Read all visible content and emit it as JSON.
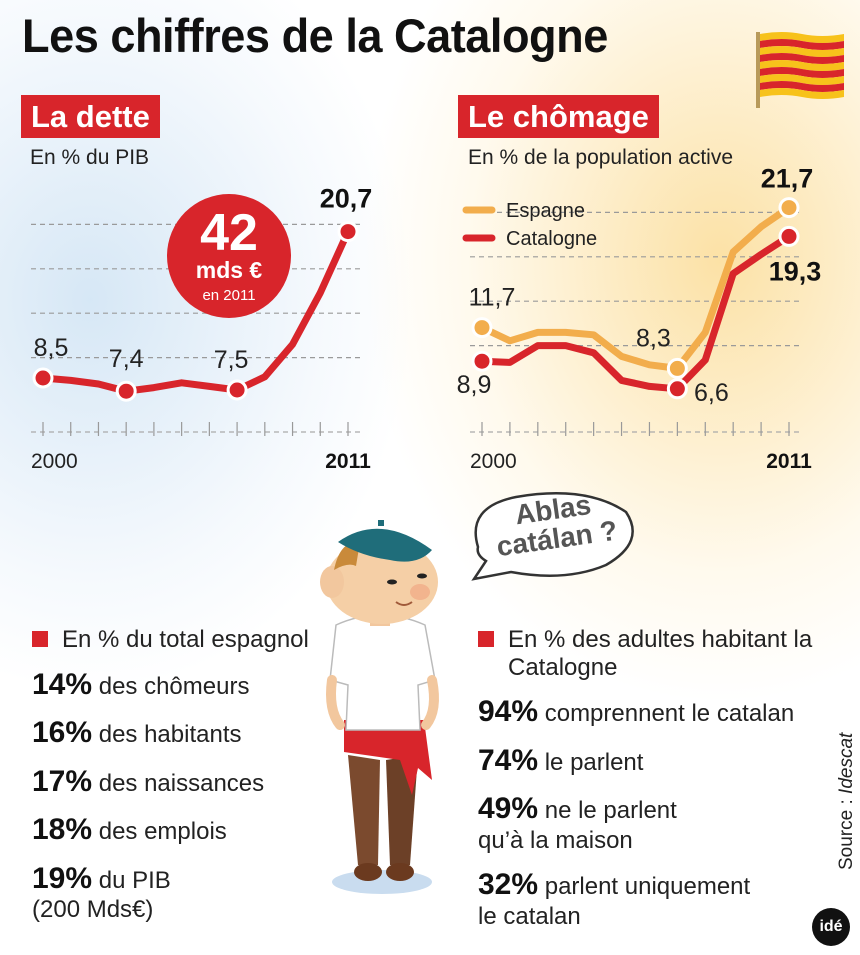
{
  "title": "Les chiffres de la Catalogne",
  "flag_colors": {
    "yellow": "#f7c21b",
    "red": "#d8252b"
  },
  "colors": {
    "red": "#d8252b",
    "orange": "#f2ad4c"
  },
  "dette": {
    "tag": "La dette",
    "subtitle": "En % du PIB",
    "bubble": {
      "amount": "42",
      "unit": "mds €",
      "year": "en 2011"
    }
  },
  "chomage": {
    "tag": "Le chômage",
    "subtitle": "En % de la population active"
  },
  "chart_data": [
    {
      "type": "line",
      "title": "La dette",
      "subtitle": "En % du PIB",
      "x": [
        2000,
        2001,
        2002,
        2003,
        2004,
        2005,
        2006,
        2007,
        2008,
        2009,
        2010,
        2011
      ],
      "x_tick_labels": {
        "start": "2000",
        "end": "2011"
      },
      "ylim": [
        5,
        25
      ],
      "grid": true,
      "series": [
        {
          "name": "",
          "values": [
            8.5,
            8.3,
            8.0,
            7.4,
            7.7,
            8.1,
            7.8,
            7.5,
            8.6,
            11.3,
            15.6,
            20.7
          ]
        }
      ],
      "labeled_points": [
        {
          "x": 2000,
          "label": "8,5"
        },
        {
          "x": 2003,
          "label": "7,4"
        },
        {
          "x": 2007,
          "label": "7,5"
        },
        {
          "x": 2011,
          "label": "20,7"
        }
      ]
    },
    {
      "type": "line",
      "title": "Le chômage",
      "subtitle": "En % de la population active",
      "x": [
        2000,
        2001,
        2002,
        2003,
        2004,
        2005,
        2006,
        2007,
        2008,
        2009,
        2010,
        2011
      ],
      "x_tick_labels": {
        "start": "2000",
        "end": "2011"
      },
      "ylim": [
        4,
        24
      ],
      "grid": true,
      "legend": "top-left",
      "series": [
        {
          "name": "Espagne",
          "values": [
            11.7,
            10.6,
            11.3,
            11.3,
            11.1,
            9.3,
            8.6,
            8.3,
            11.3,
            18.0,
            20.1,
            21.7
          ]
        },
        {
          "name": "Catalogne",
          "values": [
            8.9,
            8.8,
            10.2,
            10.2,
            9.6,
            7.3,
            6.8,
            6.6,
            9.0,
            16.2,
            17.8,
            19.3
          ]
        }
      ],
      "labeled_points": [
        {
          "series": "Espagne",
          "x": 2000,
          "label": "11,7"
        },
        {
          "series": "Espagne",
          "x": 2007,
          "label": "8,3"
        },
        {
          "series": "Espagne",
          "x": 2011,
          "label": "21,7"
        },
        {
          "series": "Catalogne",
          "x": 2000,
          "label": "8,9"
        },
        {
          "series": "Catalogne",
          "x": 2007,
          "label": "6,6"
        },
        {
          "series": "Catalogne",
          "x": 2011,
          "label": "19,3"
        }
      ]
    }
  ],
  "speech": {
    "line1": "Ablas",
    "line2": "catálan ?"
  },
  "left_stats": {
    "header": "En % du total espagnol",
    "items": [
      {
        "pct": "14%",
        "text": " des chômeurs"
      },
      {
        "pct": "16%",
        "text": " des habitants"
      },
      {
        "pct": "17%",
        "text": " des naissances"
      },
      {
        "pct": "18%",
        "text": " des emplois"
      },
      {
        "pct": "19%",
        "text": " du PIB",
        "extra": "(200 Mds€)"
      }
    ]
  },
  "right_stats": {
    "header": "En % des adultes habitant la Catalogne",
    "items": [
      {
        "pct": "94%",
        "text": " comprennent le catalan"
      },
      {
        "pct": "74%",
        "text": " le parlent"
      },
      {
        "pct": "49%",
        "text": " ne le parlent",
        "extra": "qu’à la maison"
      },
      {
        "pct": "32%",
        "text": " parlent uniquement",
        "extra": "le catalan"
      }
    ]
  },
  "source": {
    "label": "Source : ",
    "name": "Idescat"
  },
  "logo": "idé"
}
